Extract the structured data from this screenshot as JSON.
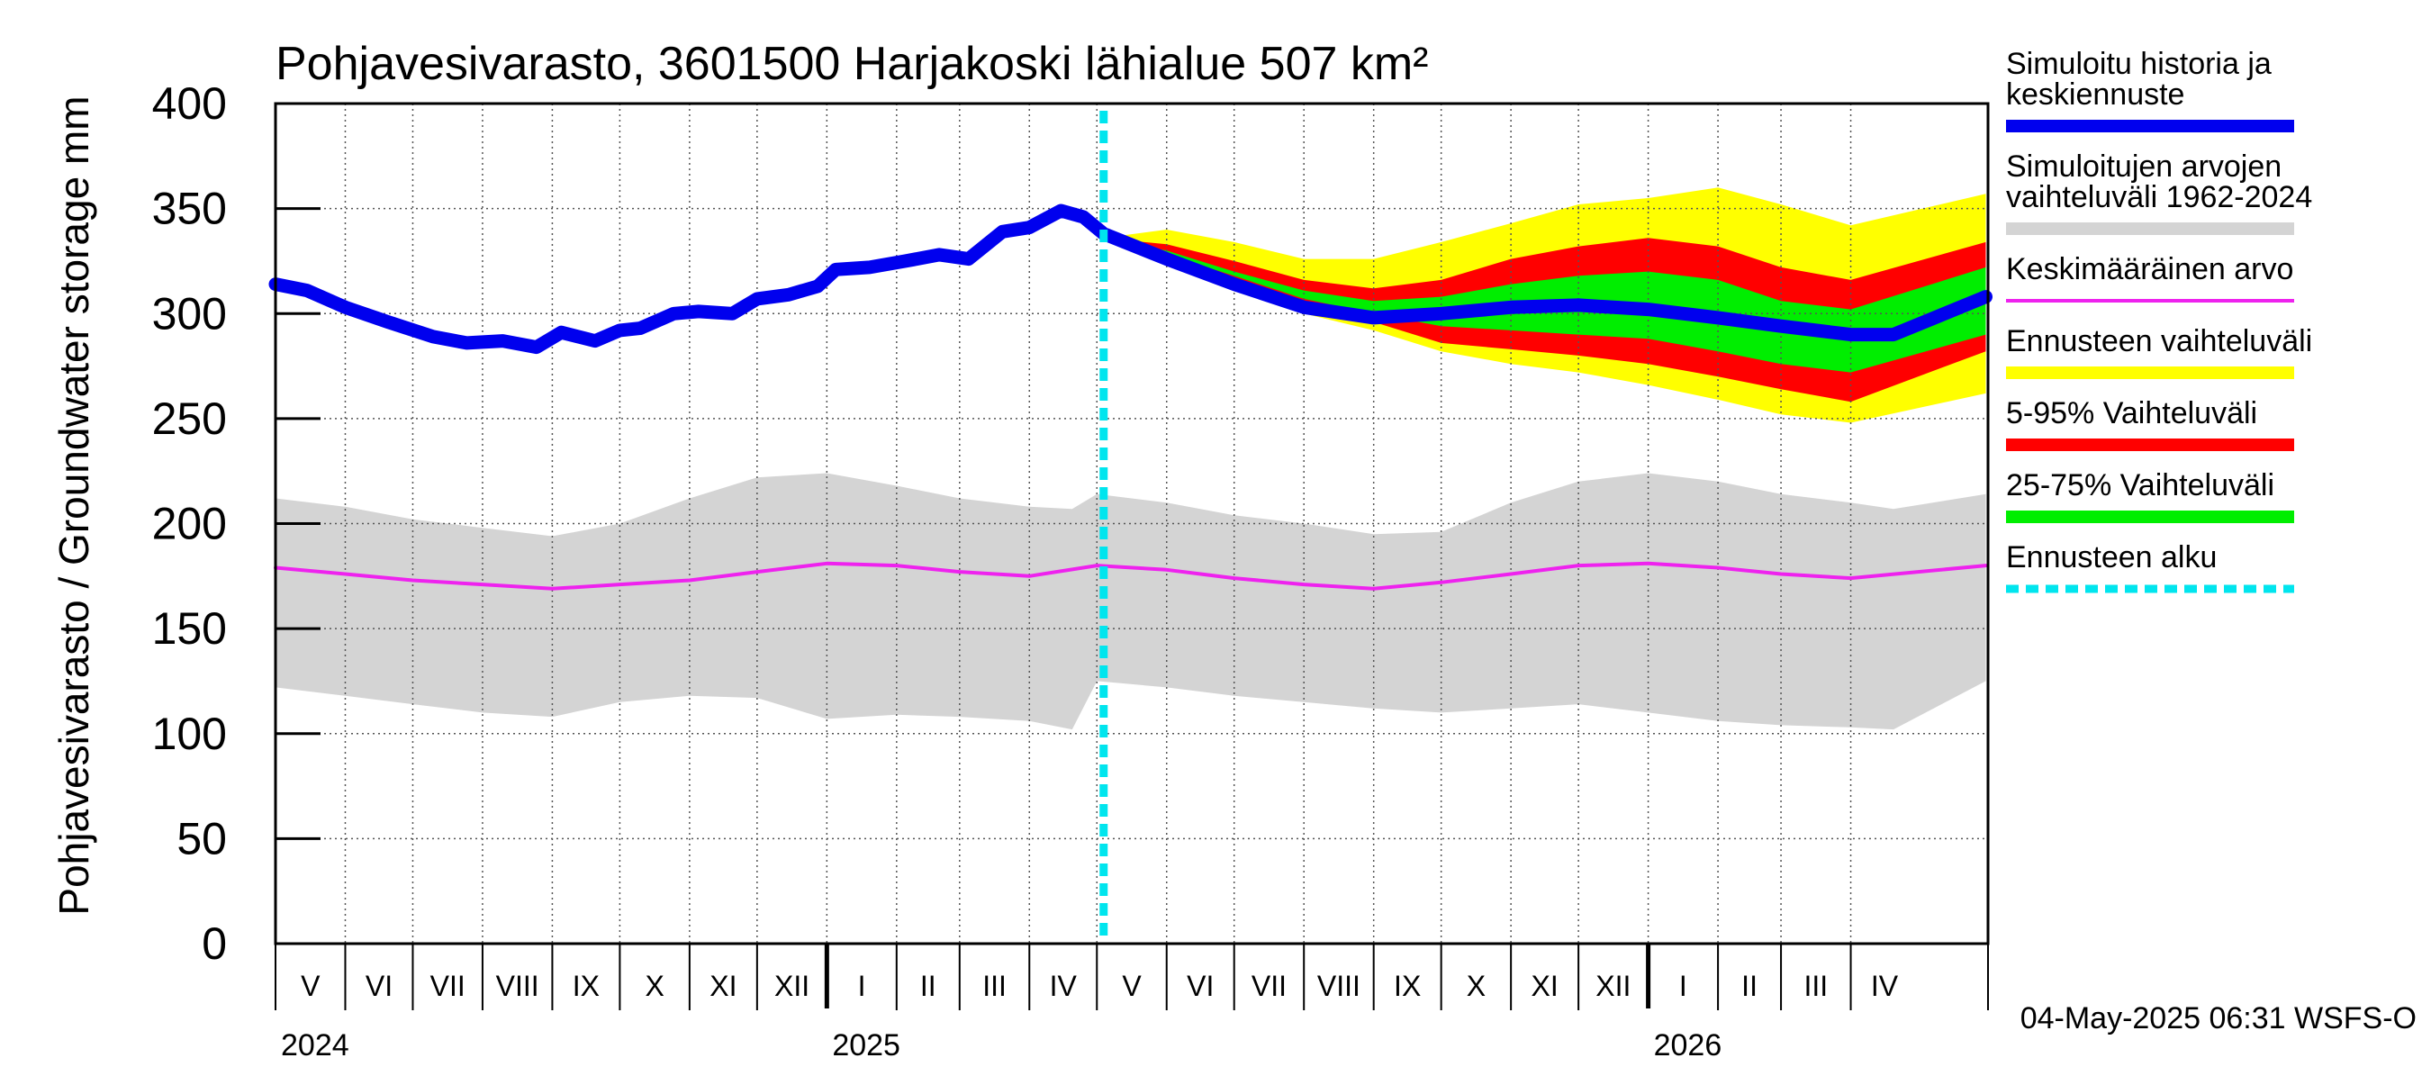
{
  "chart_data": {
    "type": "area",
    "title": "Pohjavesivarasto, 3601500 Harjakoski lähialue 507 km²",
    "ylabel": "Pohjavesivarasto / Groundwater storage   mm",
    "ylim": [
      0,
      400
    ],
    "yticks": [
      0,
      50,
      100,
      150,
      200,
      250,
      300,
      350,
      400
    ],
    "xlim": [
      "2024-05-01",
      "2026-05-31"
    ],
    "forecast_start": "2025-05-04",
    "months": [
      {
        "label": "V",
        "start": "2024-05-01",
        "end": "2024-05-31"
      },
      {
        "label": "VI",
        "start": "2024-06-01",
        "end": "2024-06-30"
      },
      {
        "label": "VII",
        "start": "2024-07-01",
        "end": "2024-07-31"
      },
      {
        "label": "VIII",
        "start": "2024-08-01",
        "end": "2024-08-31"
      },
      {
        "label": "IX",
        "start": "2024-09-01",
        "end": "2024-09-30"
      },
      {
        "label": "X",
        "start": "2024-10-01",
        "end": "2024-10-31"
      },
      {
        "label": "XI",
        "start": "2024-11-01",
        "end": "2024-11-30"
      },
      {
        "label": "XII",
        "start": "2024-12-01",
        "end": "2024-12-31"
      },
      {
        "label": "I",
        "start": "2025-01-01",
        "end": "2025-01-31"
      },
      {
        "label": "II",
        "start": "2025-02-01",
        "end": "2025-02-28"
      },
      {
        "label": "III",
        "start": "2025-03-01",
        "end": "2025-03-31"
      },
      {
        "label": "IV",
        "start": "2025-04-01",
        "end": "2025-04-30"
      },
      {
        "label": "V",
        "start": "2025-05-01",
        "end": "2025-05-31"
      },
      {
        "label": "VI",
        "start": "2025-06-01",
        "end": "2025-06-30"
      },
      {
        "label": "VII",
        "start": "2025-07-01",
        "end": "2025-07-31"
      },
      {
        "label": "VIII",
        "start": "2025-08-01",
        "end": "2025-08-31"
      },
      {
        "label": "IX",
        "start": "2025-09-01",
        "end": "2025-09-30"
      },
      {
        "label": "X",
        "start": "2025-10-01",
        "end": "2025-10-31"
      },
      {
        "label": "XI",
        "start": "2025-11-01",
        "end": "2025-11-30"
      },
      {
        "label": "XII",
        "start": "2025-12-01",
        "end": "2025-12-31"
      },
      {
        "label": "I",
        "start": "2026-01-01",
        "end": "2026-01-31"
      },
      {
        "label": "II",
        "start": "2026-02-01",
        "end": "2026-02-28"
      },
      {
        "label": "III",
        "start": "2026-03-01",
        "end": "2026-03-31"
      },
      {
        "label": "IV",
        "start": "2026-04-01",
        "end": "2026-04-30"
      }
    ],
    "years": [
      {
        "label": "2024",
        "at": "2024-05-01"
      },
      {
        "label": "2025",
        "at": "2025-01-01"
      },
      {
        "label": "2026",
        "at": "2026-01-01"
      }
    ],
    "series": [
      {
        "name": "Simuloitujen arvojen vaihteluväli 1962-2024",
        "kind": "band",
        "color": "#d4d4d4",
        "x": [
          "2024-05-01",
          "2024-06-01",
          "2024-07-01",
          "2024-08-01",
          "2024-09-01",
          "2024-10-01",
          "2024-11-01",
          "2024-12-01",
          "2025-01-01",
          "2025-02-01",
          "2025-03-01",
          "2025-04-01",
          "2025-04-20",
          "2025-05-01",
          "2025-06-01",
          "2025-07-01",
          "2025-08-01",
          "2025-09-01",
          "2025-10-01",
          "2025-11-01",
          "2025-12-01",
          "2026-01-01",
          "2026-02-01",
          "2026-03-01",
          "2026-04-01",
          "2026-04-20",
          "2026-05-31"
        ],
        "lower": [
          122,
          118,
          114,
          110,
          108,
          115,
          118,
          117,
          107,
          109,
          108,
          106,
          102,
          125,
          122,
          118,
          115,
          112,
          110,
          112,
          114,
          110,
          106,
          104,
          103,
          102,
          125
        ],
        "upper": [
          212,
          208,
          202,
          198,
          194,
          200,
          212,
          222,
          224,
          218,
          212,
          208,
          207,
          214,
          210,
          204,
          200,
          195,
          196,
          210,
          220,
          224,
          220,
          214,
          210,
          207,
          214
        ]
      },
      {
        "name": "Keskimääräinen arvo",
        "kind": "line",
        "color": "#ee22ee",
        "x": [
          "2024-05-01",
          "2024-06-01",
          "2024-07-01",
          "2024-08-01",
          "2024-09-01",
          "2024-10-01",
          "2024-11-01",
          "2024-12-01",
          "2025-01-01",
          "2025-02-01",
          "2025-03-01",
          "2025-04-01",
          "2025-05-01",
          "2025-06-01",
          "2025-07-01",
          "2025-08-01",
          "2025-09-01",
          "2025-10-01",
          "2025-11-01",
          "2025-12-01",
          "2026-01-01",
          "2026-02-01",
          "2026-03-01",
          "2026-04-01",
          "2026-05-31"
        ],
        "values": [
          179,
          176,
          173,
          171,
          169,
          171,
          173,
          177,
          181,
          180,
          177,
          175,
          180,
          178,
          174,
          171,
          169,
          172,
          176,
          180,
          181,
          179,
          176,
          174,
          180
        ]
      },
      {
        "name": "Ennusteen vaihteluväli",
        "kind": "band",
        "color": "#ffff00",
        "x": [
          "2025-05-04",
          "2025-06-01",
          "2025-07-01",
          "2025-08-01",
          "2025-09-01",
          "2025-10-01",
          "2025-11-01",
          "2025-12-01",
          "2026-01-01",
          "2026-02-01",
          "2026-03-01",
          "2026-04-01",
          "2026-05-31"
        ],
        "lower": [
          336,
          326,
          312,
          300,
          292,
          282,
          276,
          272,
          266,
          259,
          252,
          248,
          262
        ],
        "upper": [
          336,
          340,
          334,
          326,
          326,
          334,
          343,
          352,
          355,
          360,
          352,
          342,
          357
        ]
      },
      {
        "name": "5-95% Vaihteluväli",
        "kind": "band",
        "color": "#ff0000",
        "x": [
          "2025-05-04",
          "2025-06-01",
          "2025-07-01",
          "2025-08-01",
          "2025-09-01",
          "2025-10-01",
          "2025-11-01",
          "2025-12-01",
          "2026-01-01",
          "2026-02-01",
          "2026-03-01",
          "2026-04-01",
          "2026-05-31"
        ],
        "lower": [
          336,
          327,
          315,
          304,
          296,
          286,
          283,
          280,
          276,
          270,
          264,
          258,
          282
        ],
        "upper": [
          336,
          333,
          325,
          316,
          312,
          316,
          326,
          332,
          336,
          332,
          322,
          316,
          334
        ]
      },
      {
        "name": "25-75% Vaihteluväli",
        "kind": "band",
        "color": "#00ee00",
        "x": [
          "2025-05-04",
          "2025-06-01",
          "2025-07-01",
          "2025-08-01",
          "2025-09-01",
          "2025-10-01",
          "2025-11-01",
          "2025-12-01",
          "2026-01-01",
          "2026-02-01",
          "2026-03-01",
          "2026-04-01",
          "2026-05-31"
        ],
        "lower": [
          336,
          328,
          318,
          307,
          300,
          294,
          292,
          290,
          288,
          282,
          276,
          272,
          290
        ],
        "upper": [
          336,
          330,
          320,
          311,
          306,
          308,
          314,
          318,
          320,
          316,
          306,
          302,
          322
        ]
      },
      {
        "name": "Simuloitu historia ja keskiennuste",
        "kind": "line",
        "color": "#0000ee",
        "x": [
          "2024-05-01",
          "2024-05-15",
          "2024-06-01",
          "2024-06-20",
          "2024-07-10",
          "2024-07-25",
          "2024-08-10",
          "2024-08-25",
          "2024-09-05",
          "2024-09-20",
          "2024-10-01",
          "2024-10-10",
          "2024-10-25",
          "2024-11-05",
          "2024-11-20",
          "2024-12-01",
          "2024-12-15",
          "2024-12-28",
          "2025-01-05",
          "2025-01-20",
          "2025-02-05",
          "2025-02-20",
          "2025-03-05",
          "2025-03-20",
          "2025-04-01",
          "2025-04-15",
          "2025-04-25",
          "2025-05-04",
          "2025-06-01",
          "2025-07-01",
          "2025-08-01",
          "2025-09-01",
          "2025-10-01",
          "2025-11-01",
          "2025-12-01",
          "2026-01-01",
          "2026-02-01",
          "2026-03-01",
          "2026-04-01",
          "2026-04-20",
          "2026-05-31"
        ],
        "values": [
          314,
          311,
          303,
          296,
          289,
          286,
          287,
          284,
          291,
          287,
          292,
          293,
          300,
          301,
          300,
          307,
          309,
          313,
          321,
          322,
          325,
          328,
          326,
          339,
          341,
          349,
          346,
          338,
          326,
          314,
          303,
          298,
          300,
          303,
          304,
          302,
          298,
          294,
          290,
          290,
          308
        ]
      }
    ],
    "legend": {
      "placement": "right",
      "entries": [
        {
          "label": "Simuloitu historia ja keskiennuste",
          "color": "#0000ee",
          "style": "solid"
        },
        {
          "label": "Simuloitujen arvojen vaihteluväli 1962-2024",
          "color": "#d4d4d4",
          "style": "solid"
        },
        {
          "label": "Keskimääräinen arvo",
          "color": "#ee22ee",
          "style": "thin"
        },
        {
          "label": "Ennusteen vaihteluväli",
          "color": "#ffff00",
          "style": "solid"
        },
        {
          "label": "5-95% Vaihteluväli",
          "color": "#ff0000",
          "style": "solid"
        },
        {
          "label": "25-75% Vaihteluväli",
          "color": "#00ee00",
          "style": "solid"
        },
        {
          "label": "Ennusteen alku",
          "color": "#00e5ee",
          "style": "dashed"
        }
      ]
    },
    "footer": "04-May-2025 06:31 WSFS-O"
  }
}
